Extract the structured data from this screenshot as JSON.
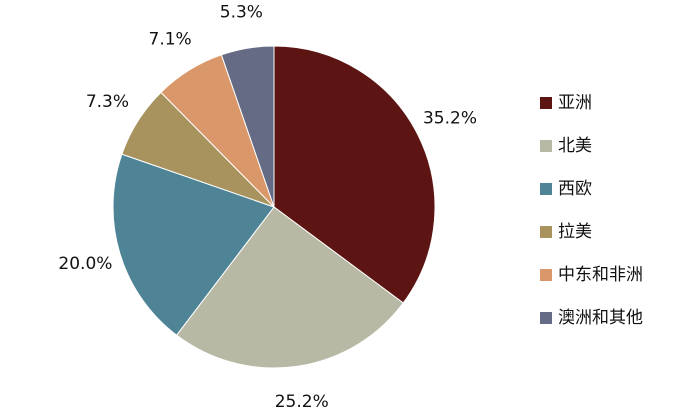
{
  "chart_data": {
    "type": "pie",
    "categories": [
      "亚洲",
      "北美",
      "西欧",
      "拉美",
      "中东和非洲",
      "澳洲和其他"
    ],
    "values": [
      35.2,
      25.2,
      20.0,
      7.3,
      7.1,
      5.3
    ],
    "value_labels": [
      "35.2%",
      "25.2%",
      "20.0%",
      "7.3%",
      "7.1%",
      "5.3%"
    ],
    "colors": [
      "#5c1512",
      "#b8b9a5",
      "#4f8496",
      "#a8925d",
      "#d9976a",
      "#656a85"
    ],
    "legend": "right"
  }
}
